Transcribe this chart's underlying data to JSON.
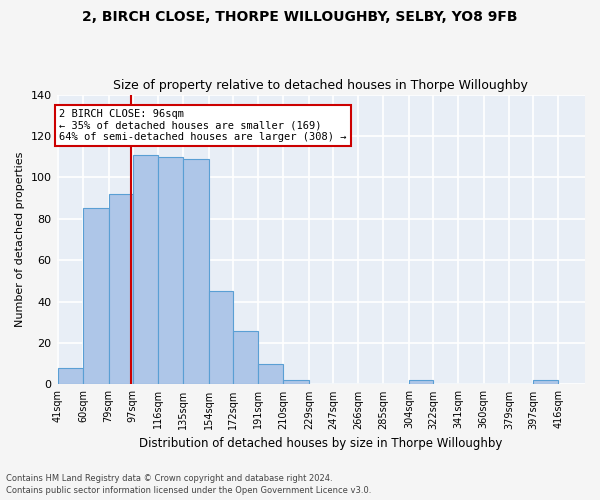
{
  "title1": "2, BIRCH CLOSE, THORPE WILLOUGHBY, SELBY, YO8 9FB",
  "title2": "Size of property relative to detached houses in Thorpe Willoughby",
  "xlabel": "Distribution of detached houses by size in Thorpe Willoughby",
  "ylabel": "Number of detached properties",
  "footer1": "Contains HM Land Registry data © Crown copyright and database right 2024.",
  "footer2": "Contains public sector information licensed under the Open Government Licence v3.0.",
  "bar_edges": [
    41,
    60,
    79,
    97,
    116,
    135,
    154,
    172,
    191,
    210,
    229,
    247,
    266,
    285,
    304,
    322,
    341,
    360,
    379,
    397,
    416
  ],
  "bar_heights": [
    8,
    85,
    92,
    111,
    110,
    109,
    45,
    26,
    10,
    2,
    0,
    0,
    0,
    0,
    2,
    0,
    0,
    0,
    0,
    2
  ],
  "bar_color": "#aec6e8",
  "bar_edge_color": "#5a9fd4",
  "vline_x": 96,
  "vline_color": "#cc0000",
  "annotation_text": "2 BIRCH CLOSE: 96sqm\n← 35% of detached houses are smaller (169)\n64% of semi-detached houses are larger (308) →",
  "annotation_box_color": "#ffffff",
  "annotation_box_edgecolor": "#cc0000",
  "ylim": [
    0,
    140
  ],
  "yticks": [
    0,
    20,
    40,
    60,
    80,
    100,
    120,
    140
  ],
  "bg_color": "#e8eef6",
  "grid_color": "#ffffff",
  "fig_bg_color": "#f5f5f5",
  "tick_labels": [
    "41sqm",
    "60sqm",
    "79sqm",
    "97sqm",
    "116sqm",
    "135sqm",
    "154sqm",
    "172sqm",
    "191sqm",
    "210sqm",
    "229sqm",
    "247sqm",
    "266sqm",
    "285sqm",
    "304sqm",
    "322sqm",
    "341sqm",
    "360sqm",
    "379sqm",
    "397sqm",
    "416sqm"
  ]
}
